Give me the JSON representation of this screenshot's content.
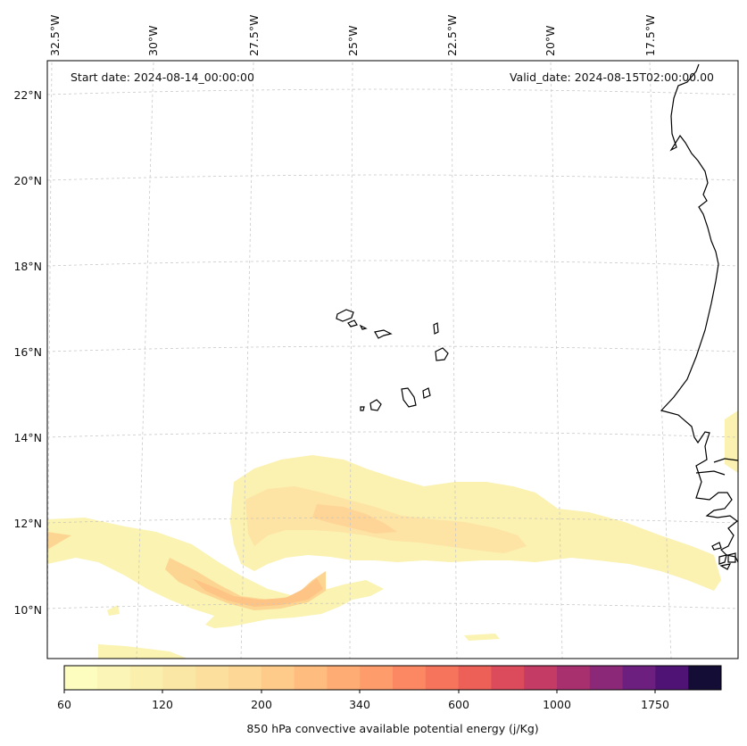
{
  "map": {
    "start_date": "Start date: 2024-08-14_00:00:00",
    "valid_date": "Valid_date: 2024-08-15T02:00:00.00",
    "lon_labels": [
      "32.5°W",
      "30°W",
      "27.5°W",
      "25°W",
      "22.5°W",
      "20°W",
      "17.5°W"
    ],
    "lat_labels": [
      "22°N",
      "20°N",
      "18°N",
      "16°N",
      "14°N",
      "12°N",
      "10°N"
    ],
    "gridlines": "dashed light gray",
    "coastline_color": "#000000"
  },
  "colorbar": {
    "label": "850 hPa convective available potential energy (j/Kg)",
    "tick_labels": [
      "60",
      "120",
      "200",
      "340",
      "600",
      "1000",
      "1750"
    ],
    "colors": [
      "#fcfdbf",
      "#fbf6b7",
      "#fbefae",
      "#fbe7a5",
      "#fcdf9c",
      "#fdd795",
      "#fecb8b",
      "#febc7f",
      "#feac74",
      "#fe9c6b",
      "#fb8863",
      "#f6745c",
      "#ec6058",
      "#dc4b5b",
      "#c43c66",
      "#a9306f",
      "#8c2878",
      "#6d1f80",
      "#4e1374",
      "#140e36"
    ]
  }
}
